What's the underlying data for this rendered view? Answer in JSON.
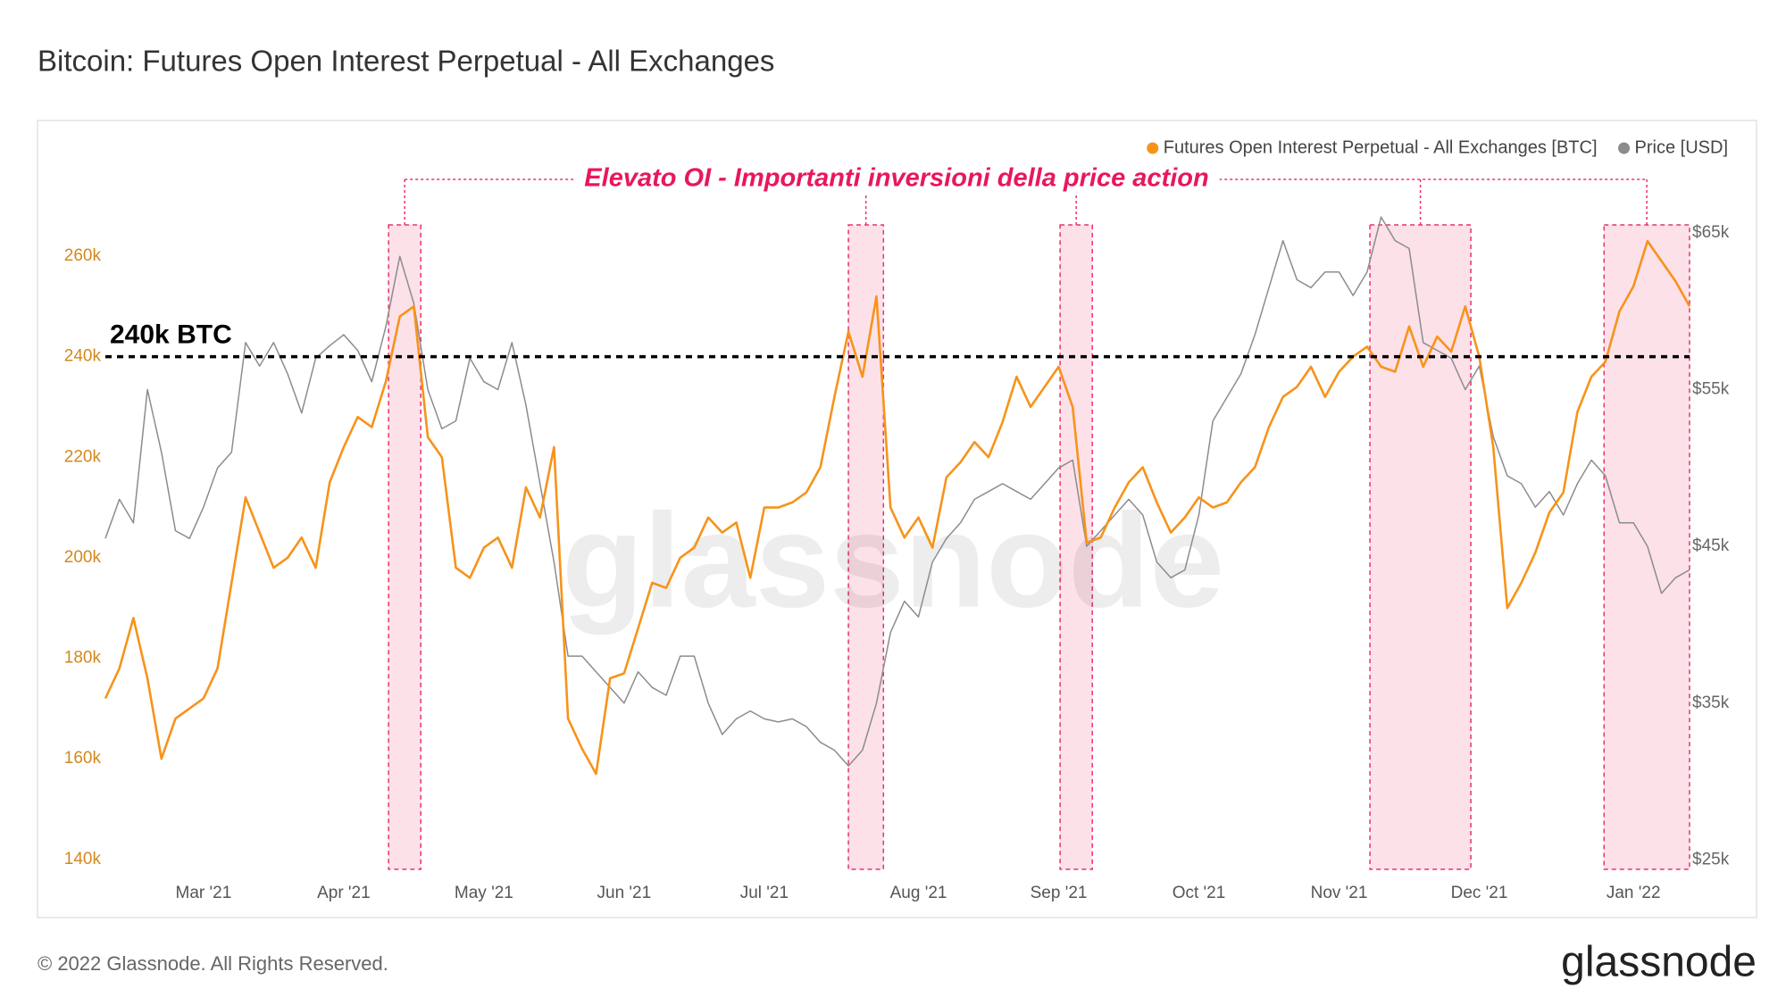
{
  "chart_data": {
    "type": "line",
    "title": "Bitcoin: Futures Open Interest Perpetual - All Exchanges",
    "annotation": "Elevato OI - Importanti inversioni della price action",
    "reference_line": {
      "value": 240000,
      "label": "240k BTC"
    },
    "highlights": [
      [
        20.2,
        22.5
      ],
      [
        53.0,
        55.5
      ],
      [
        68.1,
        70.4
      ],
      [
        90.2,
        97.4
      ],
      [
        106.9,
        113
      ]
    ],
    "highlight_color": "#e8336e",
    "watermark": "glassnode",
    "footer": "© 2022 Glassnode. All Rights Reserved.",
    "logo": "glassnode",
    "grid": false,
    "legend": "top-right",
    "categories": [
      null,
      null,
      null,
      null,
      null,
      null,
      null,
      "Mar '21",
      null,
      null,
      null,
      null,
      null,
      null,
      null,
      null,
      null,
      "Apr '21",
      null,
      null,
      null,
      null,
      null,
      null,
      null,
      null,
      null,
      "May '21",
      null,
      null,
      null,
      null,
      null,
      null,
      null,
      null,
      null,
      "Jun '21",
      null,
      null,
      null,
      null,
      null,
      null,
      null,
      null,
      null,
      "Jul '21",
      null,
      null,
      null,
      null,
      null,
      null,
      null,
      null,
      null,
      null,
      "Aug '21",
      null,
      null,
      null,
      null,
      null,
      null,
      null,
      null,
      null,
      "Sep '21",
      null,
      null,
      null,
      null,
      null,
      null,
      null,
      null,
      null,
      "Oct '21",
      null,
      null,
      null,
      null,
      null,
      null,
      null,
      null,
      null,
      "Nov '21",
      null,
      null,
      null,
      null,
      null,
      null,
      null,
      null,
      null,
      "Dec '21",
      null,
      null,
      null,
      null,
      null,
      null,
      null,
      null,
      null,
      null,
      "Jan '22",
      null,
      null,
      null,
      null
    ],
    "ylim": [
      138000,
      279000
    ],
    "yticks": [
      {
        "value": 140000,
        "label": "140k"
      },
      {
        "value": 160000,
        "label": "160k"
      },
      {
        "value": 180000,
        "label": "180k"
      },
      {
        "value": 200000,
        "label": "200k"
      },
      {
        "value": 220000,
        "label": "220k"
      },
      {
        "value": 240000,
        "label": "240k"
      },
      {
        "value": 260000,
        "label": "260k"
      }
    ],
    "y2lim": [
      24400,
      69600
    ],
    "y2ticks": [
      {
        "value": 25000,
        "label": "$25k"
      },
      {
        "value": 35000,
        "label": "$35k"
      },
      {
        "value": 45000,
        "label": "$45k"
      },
      {
        "value": 55000,
        "label": "$55k"
      },
      {
        "value": 65000,
        "label": "$65k"
      }
    ],
    "series": [
      {
        "name": "Futures Open Interest Perpetual - All Exchanges [BTC]",
        "color": "#f7931a",
        "values": [
          172000,
          178000,
          188000,
          176000,
          160000,
          168000,
          170000,
          172000,
          178000,
          195000,
          212000,
          205000,
          198000,
          200000,
          204000,
          198000,
          215000,
          222000,
          228000,
          226000,
          235000,
          248000,
          250000,
          224000,
          220000,
          198000,
          196000,
          202000,
          204000,
          198000,
          214000,
          208000,
          222000,
          168000,
          162000,
          157000,
          176000,
          177000,
          186000,
          195000,
          194000,
          200000,
          202000,
          208000,
          205000,
          207000,
          196000,
          210000,
          210000,
          211000,
          213000,
          218000,
          232000,
          245000,
          236000,
          252000,
          210000,
          204000,
          208000,
          202000,
          216000,
          219000,
          223000,
          220000,
          227000,
          236000,
          230000,
          234000,
          238000,
          230000,
          203000,
          204000,
          210000,
          215000,
          218000,
          211000,
          205000,
          208000,
          212000,
          210000,
          211000,
          215000,
          218000,
          226000,
          232000,
          234000,
          238000,
          232000,
          237000,
          240000,
          242000,
          238000,
          237000,
          246000,
          238000,
          244000,
          241000,
          250000,
          240000,
          222000,
          190000,
          195000,
          201000,
          209000,
          213000,
          229000,
          236000,
          239000,
          249000,
          254000,
          263000,
          259000,
          255000,
          250000
        ]
      },
      {
        "name": "Price [USD]",
        "color": "#8c8c8c",
        "axis": "y2",
        "values": [
          45500,
          48000,
          46500,
          55000,
          51000,
          46000,
          45500,
          47500,
          50000,
          51000,
          58000,
          56500,
          58000,
          56000,
          53500,
          57000,
          57800,
          58500,
          57500,
          55500,
          59000,
          63500,
          60500,
          55000,
          52500,
          53000,
          57000,
          55500,
          55000,
          58000,
          54000,
          49000,
          44000,
          38000,
          38000,
          37000,
          36000,
          35000,
          37000,
          36000,
          35500,
          38000,
          38000,
          35000,
          33000,
          34000,
          34500,
          34000,
          33800,
          34000,
          33500,
          32500,
          32000,
          31000,
          32000,
          35000,
          39500,
          41500,
          40500,
          44000,
          45500,
          46500,
          48000,
          48500,
          49000,
          48500,
          48000,
          49000,
          50000,
          50500,
          45000,
          46000,
          47000,
          48000,
          47000,
          44000,
          43000,
          43500,
          47000,
          53000,
          54500,
          56000,
          58500,
          61500,
          64500,
          62000,
          61500,
          62500,
          62500,
          61000,
          62500,
          66000,
          64500,
          64000,
          58000,
          57500,
          57000,
          55000,
          56500,
          52000,
          49500,
          49000,
          47500,
          48500,
          47000,
          49000,
          50500,
          49500,
          46500,
          46500,
          45000,
          42000,
          43000,
          43500
        ]
      }
    ]
  }
}
